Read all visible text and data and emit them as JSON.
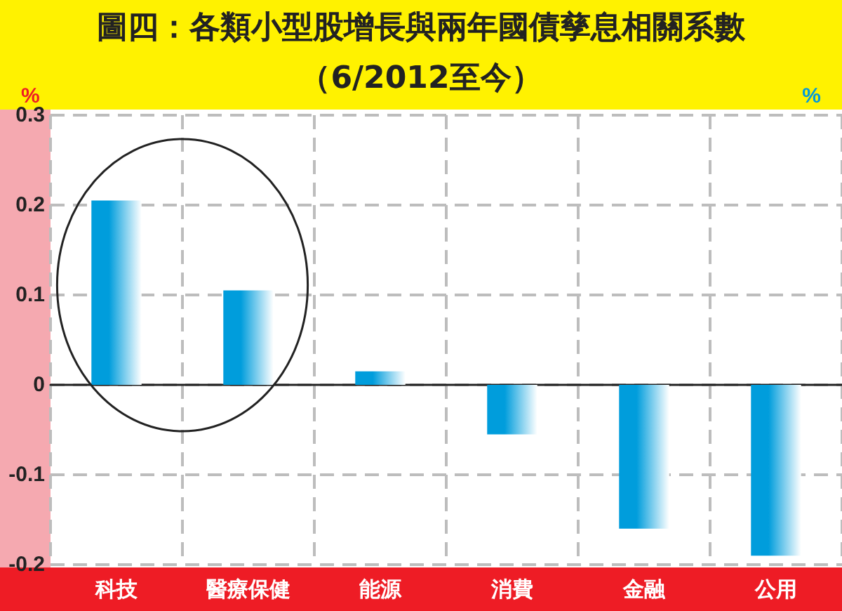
{
  "chart_data": {
    "type": "bar",
    "title": "圖四：各類小型股增長與兩年國債孳息相關系數",
    "subtitle": "（6/2012至今）",
    "ylabel": "%",
    "y2label": "%",
    "categories": [
      "科技",
      "醫療保健",
      "能源",
      "消費",
      "金融",
      "公用"
    ],
    "values": [
      0.205,
      0.105,
      0.015,
      -0.055,
      -0.16,
      -0.19
    ],
    "color": "#009ddc",
    "ylim": [
      -0.2,
      0.3
    ],
    "yticks": [
      -0.2,
      -0.1,
      0,
      0.1,
      0.2,
      0.3
    ],
    "grid": true
  }
}
